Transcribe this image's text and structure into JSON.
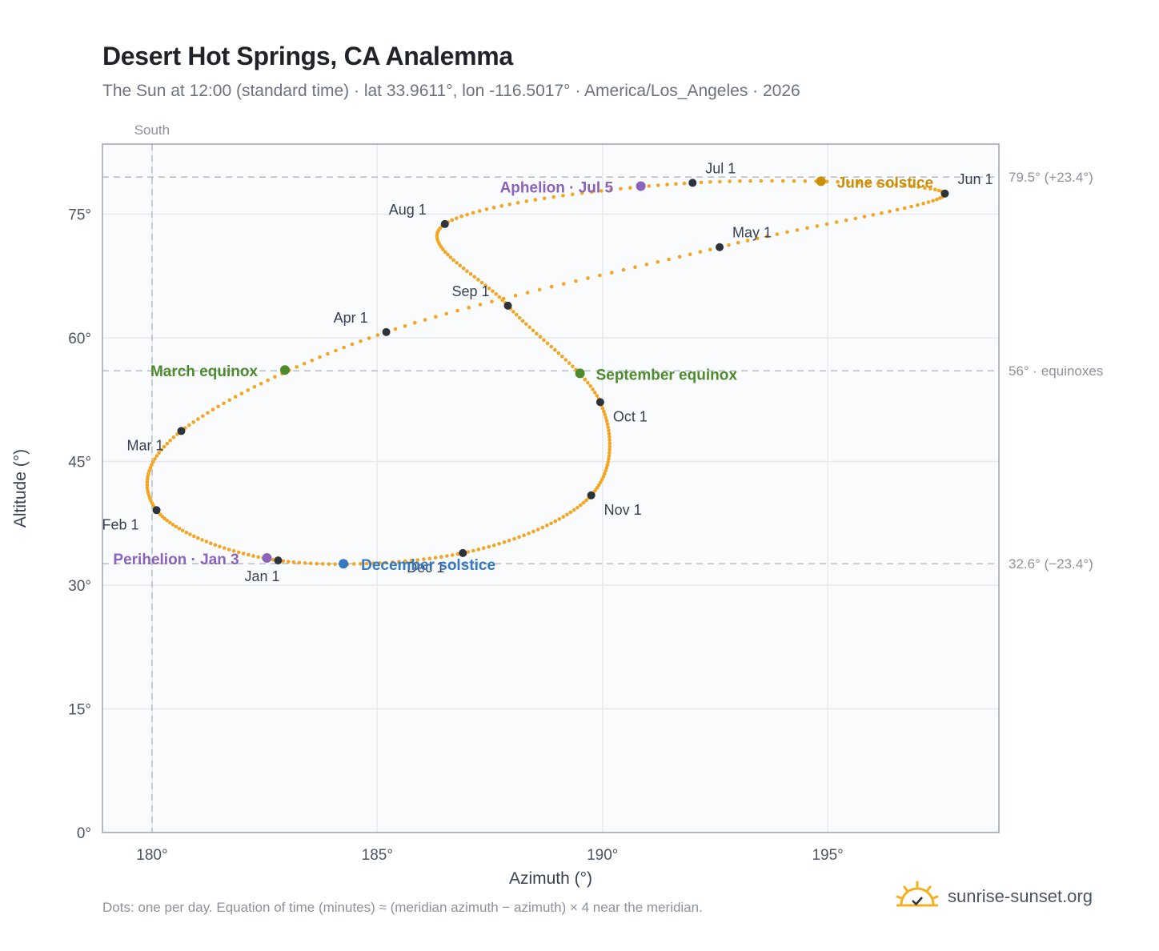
{
  "header": {
    "title": "Desert Hot Springs, CA Analemma",
    "subtitle": "The Sun at 12:00 (standard time) · lat 33.9611°, lon -116.5017° · America/Los_Angeles · 2026"
  },
  "footer": {
    "note": "Dots: one per day. Equation of time (minutes) ≈ (meridian azimuth − azimuth) × 4 near the meridian.",
    "brand": "sunrise-sunset.org",
    "brand_icon": "sun-logo-icon"
  },
  "chart_data": {
    "type": "scatter",
    "xlabel": "Azimuth (°)",
    "ylabel": "Altitude (°)",
    "xlim": [
      178.9,
      198.8
    ],
    "ylim": [
      0,
      83.5
    ],
    "xticks": [
      180,
      185,
      190,
      195
    ],
    "xtick_labels": [
      "180°",
      "185°",
      "190°",
      "195°"
    ],
    "yticks": [
      0,
      15,
      30,
      45,
      60,
      75
    ],
    "ytick_labels": [
      "0°",
      "15°",
      "30°",
      "45°",
      "60°",
      "75°"
    ],
    "grid": true,
    "meridian": {
      "azimuth": 180,
      "label": "South"
    },
    "reference_lines": [
      {
        "altitude": 79.5,
        "label": "79.5° (+23.4°)"
      },
      {
        "altitude": 56,
        "label": "56° · equinoxes"
      },
      {
        "altitude": 32.6,
        "label": "32.6° (−23.4°)"
      }
    ],
    "path_color": "#f2a623",
    "marker_color": "#2d333b",
    "month_markers": [
      {
        "label": "Jan 1",
        "az": 182.8,
        "alt": 33.0
      },
      {
        "label": "Feb 1",
        "az": 180.1,
        "alt": 39.1
      },
      {
        "label": "Mar 1",
        "az": 180.65,
        "alt": 48.7
      },
      {
        "label": "Apr 1",
        "az": 185.2,
        "alt": 60.7
      },
      {
        "label": "May 1",
        "az": 192.6,
        "alt": 71.0
      },
      {
        "label": "Jun 1",
        "az": 197.6,
        "alt": 77.5
      },
      {
        "label": "Jul 1",
        "az": 192.0,
        "alt": 78.8
      },
      {
        "label": "Aug 1",
        "az": 186.5,
        "alt": 73.8
      },
      {
        "label": "Sep 1",
        "az": 187.9,
        "alt": 63.9
      },
      {
        "label": "Oct 1",
        "az": 189.95,
        "alt": 52.2
      },
      {
        "label": "Nov 1",
        "az": 189.75,
        "alt": 40.9
      },
      {
        "label": "Dec 1",
        "az": 186.9,
        "alt": 33.9
      }
    ],
    "events": [
      {
        "label": "March equinox",
        "az": 182.95,
        "alt": 56.1,
        "color": "#4e8a2e"
      },
      {
        "label": "June solstice",
        "az": 194.85,
        "alt": 79.0,
        "color": "#c98f0a"
      },
      {
        "label": "September equinox",
        "az": 189.5,
        "alt": 55.7,
        "color": "#4e8a2e"
      },
      {
        "label": "December solstice",
        "az": 184.25,
        "alt": 32.6,
        "color": "#3577c0"
      },
      {
        "label": "Perihelion · Jan 3",
        "az": 182.55,
        "alt": 33.3,
        "color": "#8b63b8"
      },
      {
        "label": "Aphelion · Jul 5",
        "az": 190.85,
        "alt": 78.4,
        "color": "#8b63b8"
      }
    ]
  }
}
